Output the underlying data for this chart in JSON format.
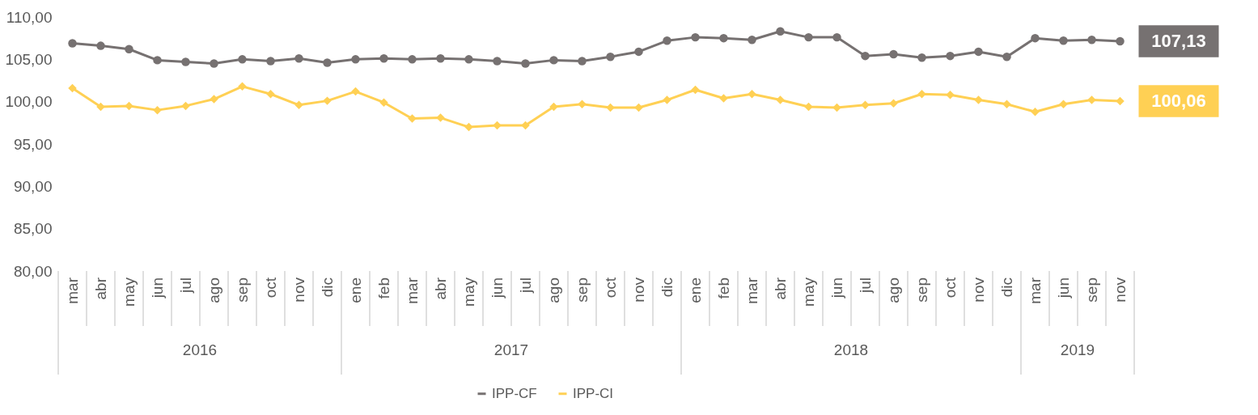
{
  "chart_data": {
    "type": "line",
    "categories": [
      "mar",
      "abr",
      "may",
      "jun",
      "jul",
      "ago",
      "sep",
      "oct",
      "nov",
      "dic",
      "ene",
      "feb",
      "mar",
      "abr",
      "may",
      "jun",
      "jul",
      "ago",
      "sep",
      "oct",
      "nov",
      "dic",
      "ene",
      "feb",
      "mar",
      "abr",
      "may",
      "jun",
      "jul",
      "ago",
      "sep",
      "oct",
      "nov",
      "dic",
      "mar",
      "jun",
      "sep",
      "nov"
    ],
    "series": [
      {
        "name": "IPP-CF",
        "color": "#767171",
        "marker": "circle",
        "values": [
          106.9,
          106.6,
          106.2,
          104.9,
          104.7,
          104.5,
          105.0,
          104.8,
          105.1,
          104.6,
          105.0,
          105.1,
          105.0,
          105.1,
          105.0,
          104.8,
          104.5,
          104.9,
          104.8,
          105.3,
          105.9,
          107.2,
          107.6,
          107.5,
          107.3,
          108.3,
          107.6,
          107.6,
          105.4,
          105.6,
          105.2,
          105.4,
          105.9,
          105.3,
          107.5,
          107.2,
          107.3,
          107.13
        ],
        "value_labels": [
          null,
          null,
          null,
          null,
          null,
          null,
          null,
          null,
          null,
          null,
          null,
          null,
          null,
          null,
          null,
          null,
          null,
          null,
          null,
          null,
          null,
          null,
          null,
          null,
          null,
          null,
          null,
          null,
          null,
          null,
          null,
          null,
          null,
          null,
          null,
          null,
          null,
          "107,13"
        ]
      },
      {
        "name": "IPP-CI",
        "color": "#ffd054",
        "marker": "diamond",
        "values": [
          101.6,
          99.4,
          99.5,
          99.0,
          99.5,
          100.3,
          101.8,
          100.9,
          99.6,
          100.1,
          101.2,
          99.9,
          98.0,
          98.1,
          97.0,
          97.2,
          97.2,
          99.4,
          99.7,
          99.3,
          99.3,
          100.2,
          101.4,
          100.4,
          100.9,
          100.2,
          99.4,
          99.3,
          99.6,
          99.8,
          100.9,
          100.8,
          100.2,
          99.7,
          98.8,
          99.7,
          100.2,
          100.06
        ],
        "value_labels": [
          null,
          null,
          null,
          null,
          null,
          null,
          null,
          null,
          null,
          null,
          null,
          null,
          null,
          null,
          null,
          null,
          null,
          null,
          null,
          null,
          null,
          null,
          null,
          null,
          null,
          null,
          null,
          null,
          null,
          null,
          null,
          null,
          null,
          null,
          null,
          null,
          null,
          "100,06"
        ]
      }
    ],
    "ylim": [
      80,
      110
    ],
    "yticks": [
      {
        "value": 80,
        "label": "80,00"
      },
      {
        "value": 85,
        "label": "85,00"
      },
      {
        "value": 90,
        "label": "90,00"
      },
      {
        "value": 95,
        "label": "95,00"
      },
      {
        "value": 100,
        "label": "100,00"
      },
      {
        "value": 105,
        "label": "105,00"
      },
      {
        "value": 110,
        "label": "110,00"
      }
    ],
    "annotations": [
      "2016",
      "2017",
      "2018",
      "2019"
    ],
    "grid": false,
    "legend": "bottom",
    "line_style": "solid"
  }
}
